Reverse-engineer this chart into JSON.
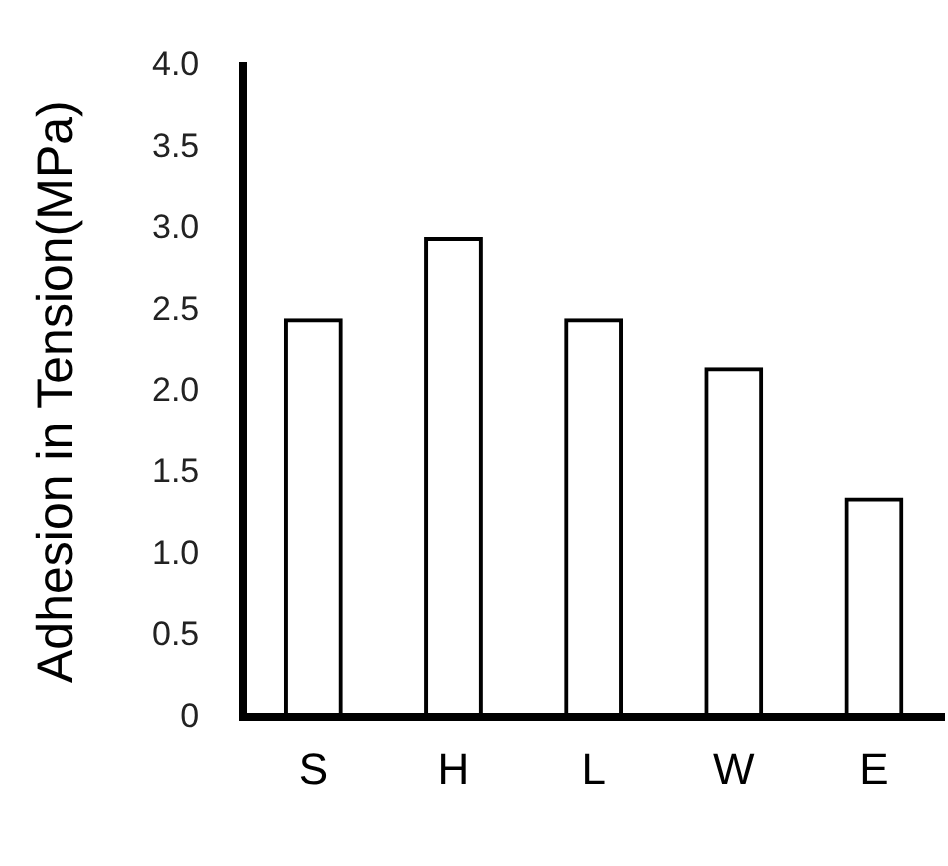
{
  "chart_data": {
    "type": "bar",
    "ylabel": "Adhesion in Tension(MPa)",
    "categories": [
      "S",
      "H",
      "L",
      "W",
      "E"
    ],
    "values": [
      2.45,
      2.95,
      2.45,
      2.15,
      1.35
    ],
    "color": "#000000",
    "ylim": [
      0,
      4
    ],
    "yticks": [
      0,
      {
        "value": 0.5,
        "label": "0.5"
      },
      {
        "value": 1,
        "label": "1.0"
      },
      {
        "value": 1.5,
        "label": "1.5"
      },
      {
        "value": 2,
        "label": "2.0"
      },
      {
        "value": 2.5,
        "label": "2.5"
      },
      {
        "value": 3,
        "label": "3.0"
      },
      {
        "value": 3.5,
        "label": "3.5"
      },
      {
        "value": 4,
        "label": "4.0"
      }
    ],
    "grid": false
  }
}
